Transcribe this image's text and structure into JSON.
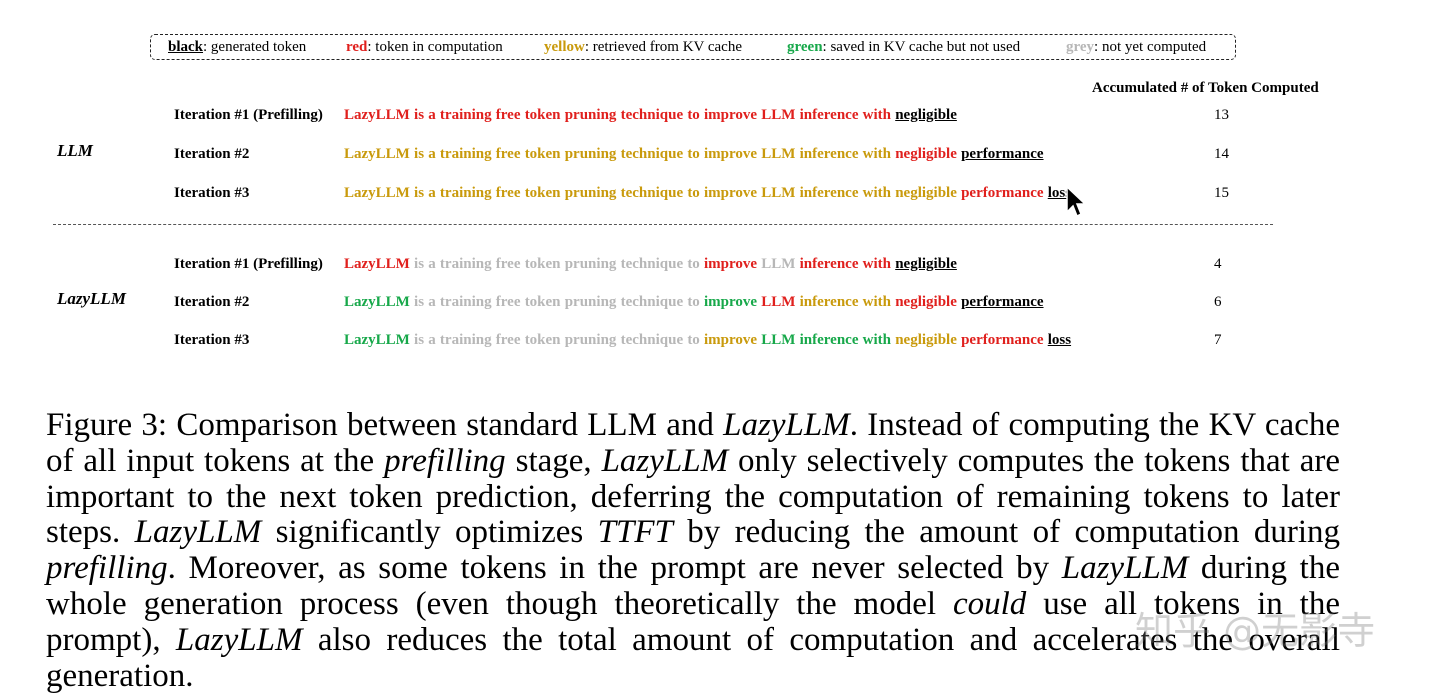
{
  "legend": [
    {
      "key": "black",
      "text": ": generated token",
      "color_class": "k-black"
    },
    {
      "key": "red",
      "text": ": token in computation",
      "color_class": "k-red"
    },
    {
      "key": "yellow",
      "text": ": retrieved from KV cache",
      "color_class": "k-yellow"
    },
    {
      "key": "green",
      "text": ": saved in KV cache but not used",
      "color_class": "k-green"
    },
    {
      "key": "grey",
      "text": ": not yet computed",
      "color_class": "k-grey"
    }
  ],
  "colors": {
    "red": "#e0201d",
    "yellow": "#c99a0c",
    "green": "#17a84a",
    "grey": "#b7b7b7",
    "black": "#000000"
  },
  "accumulated_header": "Accumulated # of Token Computed",
  "groups": [
    {
      "label": "LLM",
      "rows": [
        {
          "iteration": "Iteration #1 (Prefilling)",
          "count": "13",
          "tokens": [
            [
              "LazyLLM",
              "red"
            ],
            [
              "is",
              "red"
            ],
            [
              "a",
              "red"
            ],
            [
              "training",
              "red"
            ],
            [
              "free",
              "red"
            ],
            [
              "token",
              "red"
            ],
            [
              "pruning",
              "red"
            ],
            [
              "technique",
              "red"
            ],
            [
              "to",
              "red"
            ],
            [
              "improve",
              "red"
            ],
            [
              "LLM",
              "red"
            ],
            [
              "inference",
              "red"
            ],
            [
              "with",
              "red"
            ],
            [
              "negligible",
              "black"
            ]
          ]
        },
        {
          "iteration": "Iteration #2",
          "count": "14",
          "tokens": [
            [
              "LazyLLM",
              "yellow"
            ],
            [
              "is",
              "yellow"
            ],
            [
              "a",
              "yellow"
            ],
            [
              "training",
              "yellow"
            ],
            [
              "free",
              "yellow"
            ],
            [
              "token",
              "yellow"
            ],
            [
              "pruning",
              "yellow"
            ],
            [
              "technique",
              "yellow"
            ],
            [
              "to",
              "yellow"
            ],
            [
              "improve",
              "yellow"
            ],
            [
              "LLM",
              "yellow"
            ],
            [
              "inference",
              "yellow"
            ],
            [
              "with",
              "yellow"
            ],
            [
              "negligible",
              "red"
            ],
            [
              "performance",
              "black"
            ]
          ]
        },
        {
          "iteration": "Iteration #3",
          "count": "15",
          "tokens": [
            [
              "LazyLLM",
              "yellow"
            ],
            [
              "is",
              "yellow"
            ],
            [
              "a",
              "yellow"
            ],
            [
              "training",
              "yellow"
            ],
            [
              "free",
              "yellow"
            ],
            [
              "token",
              "yellow"
            ],
            [
              "pruning",
              "yellow"
            ],
            [
              "technique",
              "yellow"
            ],
            [
              "to",
              "yellow"
            ],
            [
              "improve",
              "yellow"
            ],
            [
              "LLM",
              "yellow"
            ],
            [
              "inference",
              "yellow"
            ],
            [
              "with",
              "yellow"
            ],
            [
              "negligible",
              "yellow"
            ],
            [
              "performance",
              "red"
            ],
            [
              "loss",
              "black"
            ]
          ]
        }
      ]
    },
    {
      "label": "LazyLLM",
      "rows": [
        {
          "iteration": "Iteration #1 (Prefilling)",
          "count": "4",
          "tokens": [
            [
              "LazyLLM",
              "red"
            ],
            [
              "is",
              "grey"
            ],
            [
              "a",
              "grey"
            ],
            [
              "training",
              "grey"
            ],
            [
              "free",
              "grey"
            ],
            [
              "token",
              "grey"
            ],
            [
              "pruning",
              "grey"
            ],
            [
              "technique",
              "grey"
            ],
            [
              "to",
              "grey"
            ],
            [
              "improve",
              "red"
            ],
            [
              "LLM",
              "grey"
            ],
            [
              "inference",
              "red"
            ],
            [
              "with",
              "red"
            ],
            [
              "negligible",
              "black"
            ]
          ]
        },
        {
          "iteration": "Iteration #2",
          "count": "6",
          "tokens": [
            [
              "LazyLLM",
              "green"
            ],
            [
              "is",
              "grey"
            ],
            [
              "a",
              "grey"
            ],
            [
              "training",
              "grey"
            ],
            [
              "free",
              "grey"
            ],
            [
              "token",
              "grey"
            ],
            [
              "pruning",
              "grey"
            ],
            [
              "technique",
              "grey"
            ],
            [
              "to",
              "grey"
            ],
            [
              "improve",
              "green"
            ],
            [
              "LLM",
              "red"
            ],
            [
              "inference",
              "yellow"
            ],
            [
              "with",
              "yellow"
            ],
            [
              "negligible",
              "red"
            ],
            [
              "performance",
              "black"
            ]
          ]
        },
        {
          "iteration": "Iteration #3",
          "count": "7",
          "tokens": [
            [
              "LazyLLM",
              "green"
            ],
            [
              "is",
              "grey"
            ],
            [
              "a",
              "grey"
            ],
            [
              "training",
              "grey"
            ],
            [
              "free",
              "grey"
            ],
            [
              "token",
              "grey"
            ],
            [
              "pruning",
              "grey"
            ],
            [
              "technique",
              "grey"
            ],
            [
              "to",
              "grey"
            ],
            [
              "improve",
              "yellow"
            ],
            [
              "LLM",
              "green"
            ],
            [
              "inference",
              "green"
            ],
            [
              "with",
              "green"
            ],
            [
              "negligible",
              "yellow"
            ],
            [
              "performance",
              "red"
            ],
            [
              "loss",
              "black"
            ]
          ]
        }
      ]
    }
  ],
  "caption": [
    {
      "t": "Figure 3: Comparison between standard LLM and ",
      "i": false
    },
    {
      "t": "LazyLLM",
      "i": true
    },
    {
      "t": ". Instead of computing the KV cache of all input tokens at the ",
      "i": false
    },
    {
      "t": "prefilling",
      "i": true
    },
    {
      "t": " stage, ",
      "i": false
    },
    {
      "t": "LazyLLM",
      "i": true
    },
    {
      "t": " only selectively computes the tokens that are important to the next token prediction, deferring the computation of remaining tokens to later steps. ",
      "i": false
    },
    {
      "t": "LazyLLM",
      "i": true
    },
    {
      "t": " significantly optimizes ",
      "i": false
    },
    {
      "t": "TTFT",
      "i": true
    },
    {
      "t": " by reducing the amount of computation during ",
      "i": false
    },
    {
      "t": "prefilling",
      "i": true
    },
    {
      "t": ". Moreover, as some tokens in the prompt are never selected by ",
      "i": false
    },
    {
      "t": "LazyLLM",
      "i": true
    },
    {
      "t": " during the whole generation process (even though theoretically the model ",
      "i": false
    },
    {
      "t": "could",
      "i": true
    },
    {
      "t": " use all tokens in the prompt), ",
      "i": false
    },
    {
      "t": "LazyLLM",
      "i": true
    },
    {
      "t": " also reduces the total amount of computation and accelerates the overall generation.",
      "i": false
    }
  ],
  "watermark": "知乎 @无影寺",
  "cursor_icon": "arrow-cursor-icon"
}
